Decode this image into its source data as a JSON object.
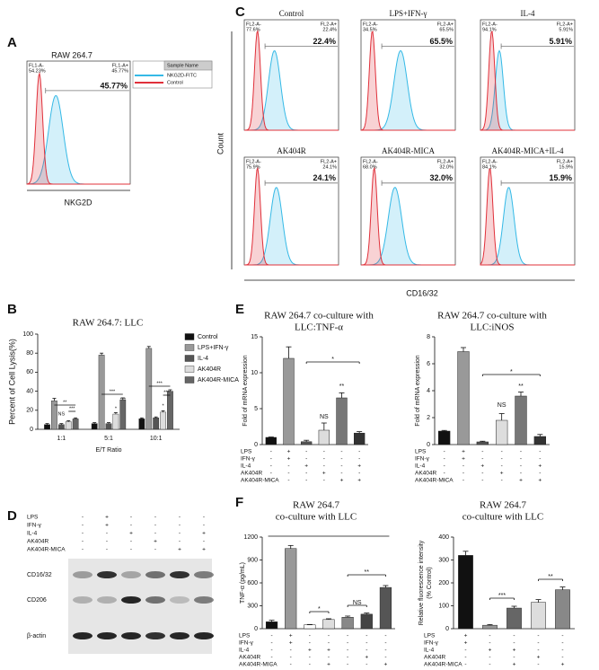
{
  "panel_labels": [
    "A",
    "B",
    "C",
    "D",
    "E",
    "F"
  ],
  "chart_data": [
    {
      "type": "flow",
      "title": "RAW 264.7",
      "xlabel": "NKG2D",
      "gates": [
        {
          "name": "FL1-A-",
          "value": 54.23,
          "label": "54.23%"
        },
        {
          "name": "FL1-A+",
          "value": 45.77,
          "label": "45.77%"
        }
      ],
      "legend": {
        "title": "Sample Name",
        "series": [
          {
            "name": "NKG2D-FITC",
            "color": "#35b9e6"
          },
          {
            "name": "Control",
            "color": "#e0303a"
          }
        ]
      }
    },
    {
      "type": "flow-grid",
      "xlabel": "CD16/32",
      "ylabel": "Count",
      "colors": [
        "#35b9e6",
        "#e0303a"
      ],
      "panels": [
        {
          "title": "Control",
          "gates": [
            {
              "name": "FL2-A-",
              "value": 77.6,
              "label": "77.6%"
            },
            {
              "name": "FL2-A+",
              "value": 22.4,
              "label": "22.4%"
            }
          ]
        },
        {
          "title": "LPS+IFN-γ",
          "gates": [
            {
              "name": "FL2-A-",
              "value": 34.5,
              "label": "34.5%"
            },
            {
              "name": "FL2-A+",
              "value": 65.5,
              "label": "65.5%"
            }
          ]
        },
        {
          "title": "IL-4",
          "gates": [
            {
              "name": "FL2-A-",
              "value": 94.1,
              "label": "94.1%"
            },
            {
              "name": "FL2-A+",
              "value": 5.91,
              "label": "5.91%"
            }
          ]
        },
        {
          "title": "AK404R",
          "gates": [
            {
              "name": "FL2-A-",
              "value": 75.9,
              "label": "75.9%"
            },
            {
              "name": "FL2-A+",
              "value": 24.1,
              "label": "24.1%"
            }
          ]
        },
        {
          "title": "AK404R-MICA",
          "gates": [
            {
              "name": "FL2-A-",
              "value": 68.0,
              "label": "68.0%"
            },
            {
              "name": "FL2-A+",
              "value": 32.0,
              "label": "32.0%"
            }
          ]
        },
        {
          "title": "AK404R-MICA+IL-4",
          "gates": [
            {
              "name": "FL2-A-",
              "value": 84.1,
              "label": "84.1%"
            },
            {
              "name": "FL2-A+",
              "value": 15.9,
              "label": "15.9%"
            }
          ]
        }
      ]
    },
    {
      "type": "grouped-bar",
      "title": "RAW 264.7: LLC",
      "xlabel": "E/T Ratio",
      "ylabel": "Percent of Cell Lysis(%)",
      "categories": [
        "1:1",
        "5:1",
        "10:1"
      ],
      "ylim": [
        0,
        100
      ],
      "yticks": [
        0,
        20,
        40,
        60,
        80,
        100
      ],
      "series": [
        {
          "name": "Control",
          "color": "#111111",
          "values": [
            5,
            6,
            11
          ],
          "errors": [
            1,
            1,
            1
          ]
        },
        {
          "name": "LPS+IFN-γ",
          "color": "#999999",
          "values": [
            30,
            78,
            85
          ],
          "errors": [
            2.5,
            2,
            2
          ]
        },
        {
          "name": "IL-4",
          "color": "#555555",
          "values": [
            5,
            6,
            12
          ],
          "errors": [
            1,
            1,
            1
          ]
        },
        {
          "name": "AK404R",
          "color": "#dddddd",
          "values": [
            8,
            16,
            18
          ],
          "errors": [
            1,
            1.5,
            1.5
          ]
        },
        {
          "name": "AK404R-MICA",
          "color": "#666666",
          "values": [
            11,
            31,
            40
          ],
          "errors": [
            1,
            2,
            1.5
          ]
        }
      ],
      "annotations": [
        "**",
        "NS",
        "***",
        "*",
        "***",
        "***",
        "*",
        "***",
        "***"
      ]
    },
    {
      "type": "bar",
      "title": [
        "RAW 264.7 co-culture with",
        "LLC:TNF-α"
      ],
      "ylabel": [
        "Fold of mRNA expression"
      ],
      "ylim": [
        0,
        15
      ],
      "yticks": [
        0,
        5,
        10,
        15
      ],
      "values": [
        1,
        12,
        0.4,
        2,
        6.5,
        1.6
      ],
      "errors": [
        0.05,
        1.6,
        0.2,
        1.0,
        0.7,
        0.2
      ],
      "colors": [
        "#111111",
        "#999999",
        "#555555",
        "#dddddd",
        "#777777",
        "#333333"
      ],
      "treatments": [
        {
          "name": "LPS",
          "signs": [
            "-",
            "+",
            "-",
            "-",
            "-",
            "-"
          ]
        },
        {
          "name": "IFN-γ",
          "signs": [
            "-",
            "+",
            "-",
            "-",
            "-",
            "-"
          ]
        },
        {
          "name": "IL-4",
          "signs": [
            "-",
            "-",
            "+",
            "-",
            "-",
            "+"
          ]
        },
        {
          "name": "AK404R",
          "signs": [
            "-",
            "-",
            "-",
            "+",
            "-",
            "-"
          ]
        },
        {
          "name": "AK404R-MICA",
          "signs": [
            "-",
            "-",
            "-",
            "-",
            "+",
            "+"
          ]
        }
      ],
      "annotations": [
        "*",
        "NS",
        "**"
      ]
    },
    {
      "type": "bar",
      "title": [
        "RAW 264.7 co-culture with",
        "LLC:iNOS"
      ],
      "ylabel": [
        "Fold of mRNA expression"
      ],
      "ylim": [
        0,
        8
      ],
      "yticks": [
        0,
        2,
        4,
        6,
        8
      ],
      "values": [
        1,
        6.9,
        0.2,
        1.8,
        3.6,
        0.6
      ],
      "errors": [
        0.05,
        0.3,
        0.05,
        0.5,
        0.3,
        0.15
      ],
      "colors": [
        "#111111",
        "#999999",
        "#555555",
        "#dddddd",
        "#777777",
        "#333333"
      ],
      "treatments": [
        {
          "name": "LPS",
          "signs": [
            "-",
            "+",
            "-",
            "-",
            "-",
            "-"
          ]
        },
        {
          "name": "IFN-γ",
          "signs": [
            "-",
            "+",
            "-",
            "-",
            "-",
            "-"
          ]
        },
        {
          "name": "IL-4",
          "signs": [
            "-",
            "-",
            "+",
            "-",
            "-",
            "+"
          ]
        },
        {
          "name": "AK404R",
          "signs": [
            "-",
            "-",
            "-",
            "+",
            "-",
            "-"
          ]
        },
        {
          "name": "AK404R-MICA",
          "signs": [
            "-",
            "-",
            "-",
            "-",
            "+",
            "+"
          ]
        }
      ],
      "annotations": [
        "*",
        "NS",
        "**"
      ]
    },
    {
      "type": "bar",
      "title": [
        "RAW 264.7",
        "co-culture with LLC"
      ],
      "ylabel": [
        "TNF-α (pg/mL)"
      ],
      "ylim": [
        0,
        1200
      ],
      "yticks": [
        0,
        300,
        600,
        900,
        1200
      ],
      "values": [
        90,
        1050,
        50,
        120,
        150,
        190,
        540
      ],
      "errors": [
        20,
        40,
        5,
        10,
        15,
        15,
        25
      ],
      "colors": [
        "#111111",
        "#999999",
        "#ffffff",
        "#dddddd",
        "#888888",
        "#444444",
        "#555555"
      ],
      "treatments": [
        {
          "name": "LPS",
          "signs": [
            "-",
            "+",
            "-",
            "-",
            "-",
            "-",
            "-"
          ]
        },
        {
          "name": "IFN-γ",
          "signs": [
            "-",
            "+",
            "-",
            "-",
            "-",
            "-",
            "-"
          ]
        },
        {
          "name": "IL-4",
          "signs": [
            "-",
            "-",
            "+",
            "+",
            "-",
            "-",
            "-"
          ]
        },
        {
          "name": "AK404R",
          "signs": [
            "-",
            "-",
            "-",
            "-",
            "-",
            "+",
            "-"
          ]
        },
        {
          "name": "AK404R-MICA",
          "signs": [
            "-",
            "-",
            "-",
            "+",
            "-",
            "-",
            "+"
          ]
        }
      ],
      "annotations": [
        "*",
        "NS",
        "**"
      ]
    },
    {
      "type": "bar",
      "title": [
        "RAW 264.7",
        "co-culture with LLC"
      ],
      "ylabel": [
        "Relative fluorescence intensity",
        "(% Control)"
      ],
      "ylim": [
        0,
        400
      ],
      "yticks": [
        0,
        100,
        200,
        300,
        400
      ],
      "values": [
        320,
        15,
        90,
        115,
        170
      ],
      "errors": [
        18,
        3,
        8,
        12,
        12
      ],
      "colors": [
        "#111111",
        "#999999",
        "#666666",
        "#dddddd",
        "#888888"
      ],
      "treatments": [
        {
          "name": "LPS",
          "signs": [
            "+",
            "-",
            "-",
            "-",
            "-"
          ]
        },
        {
          "name": "IFN-γ",
          "signs": [
            "+",
            "-",
            "-",
            "-",
            "-"
          ]
        },
        {
          "name": "IL-4",
          "signs": [
            "-",
            "+",
            "+",
            "-",
            "-"
          ]
        },
        {
          "name": "AK404R",
          "signs": [
            "-",
            "-",
            "-",
            "+",
            "-"
          ]
        },
        {
          "name": "AK404R-MICA",
          "signs": [
            "-",
            "-",
            "+",
            "-",
            "+"
          ]
        }
      ],
      "annotations": [
        "***",
        "**"
      ]
    }
  ],
  "blot": {
    "treatments": [
      {
        "name": "LPS",
        "signs": [
          "-",
          "+",
          "-",
          "-",
          "-",
          "-"
        ]
      },
      {
        "name": "IFN-γ",
        "signs": [
          "-",
          "+",
          "-",
          "-",
          "-",
          "-"
        ]
      },
      {
        "name": "IL-4",
        "signs": [
          "-",
          "-",
          "+",
          "-",
          "-",
          "+"
        ]
      },
      {
        "name": "AK404R",
        "signs": [
          "-",
          "-",
          "-",
          "+",
          "-",
          "-"
        ]
      },
      {
        "name": "AK404R-MICA",
        "signs": [
          "-",
          "-",
          "-",
          "-",
          "+",
          "+"
        ]
      }
    ],
    "proteins": [
      "CD16/32",
      "CD206",
      "β-actin"
    ]
  }
}
